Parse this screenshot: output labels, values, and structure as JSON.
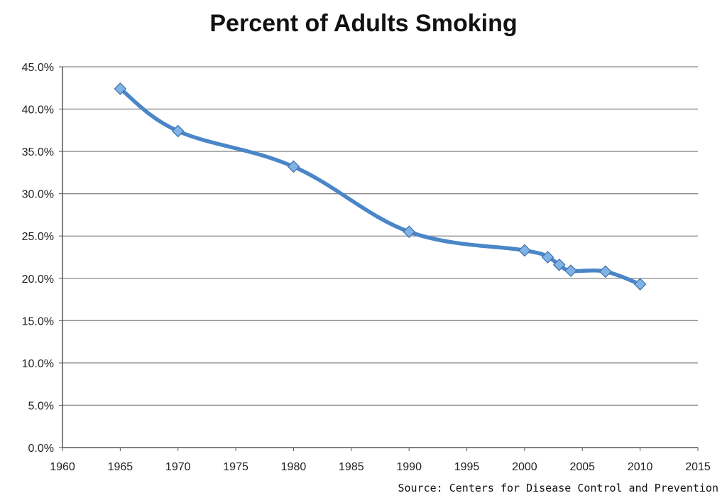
{
  "chart_data": {
    "type": "line",
    "title": "Percent of Adults Smoking",
    "xlabel": "",
    "ylabel": "",
    "x": [
      1965,
      1970,
      1980,
      1990,
      2000,
      2002,
      2003,
      2004,
      2007,
      2010
    ],
    "series": [
      {
        "values": [
          42.4,
          37.4,
          33.2,
          25.5,
          23.3,
          22.5,
          21.6,
          20.9,
          20.8,
          19.3
        ]
      }
    ],
    "xlim": [
      1960,
      2015
    ],
    "ylim": [
      0,
      45
    ],
    "xticks": [
      "1960",
      "1965",
      "1970",
      "1975",
      "1980",
      "1985",
      "1990",
      "1995",
      "2000",
      "2005",
      "2010",
      "2015"
    ],
    "yticks": [
      "0.0%",
      "5.0%",
      "10.0%",
      "15.0%",
      "20.0%",
      "25.0%",
      "30.0%",
      "35.0%",
      "40.0%",
      "45.0%"
    ],
    "grid": true,
    "legend": "none",
    "line_color": "#4a86c8",
    "marker_color": "#7fb2e5",
    "marker": "diamond"
  },
  "source_note": "Source: Centers for Disease Control and Prevention"
}
